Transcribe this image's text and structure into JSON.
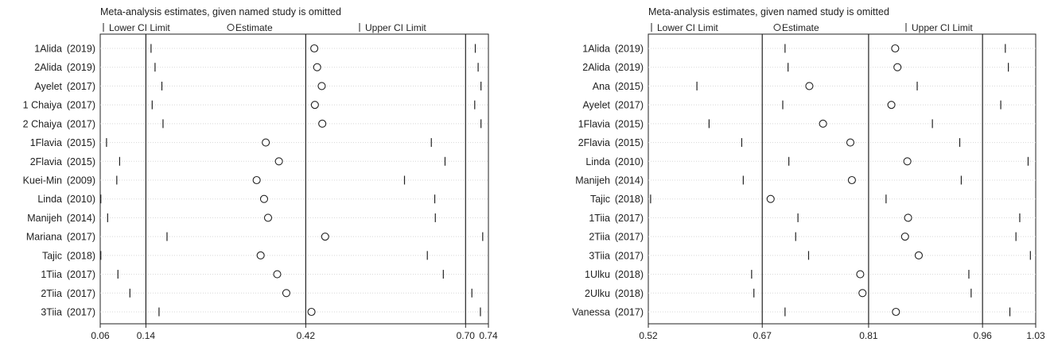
{
  "chart_data": [
    {
      "type": "scatter",
      "title": "Meta-analysis estimates, given named study is omitted",
      "legend": {
        "lower": "Lower CI Limit",
        "estimate": "Estimate",
        "upper": "Upper CI Limit"
      },
      "xlim": [
        0.06,
        0.74
      ],
      "ticks": [
        0.06,
        0.14,
        0.42,
        0.7,
        0.74
      ],
      "tick_labels": [
        "0.06",
        "0.14",
        "0.42",
        "0.70",
        "0.74"
      ],
      "reference_lines": [
        0.14,
        0.42,
        0.7
      ],
      "studies": [
        {
          "name": "1Alida",
          "year": "(2019)",
          "lower": 0.149,
          "estimate": 0.435,
          "upper": 0.717
        },
        {
          "name": "2Alida",
          "year": "(2019)",
          "lower": 0.156,
          "estimate": 0.44,
          "upper": 0.722
        },
        {
          "name": "Ayelet",
          "year": "(2017)",
          "lower": 0.168,
          "estimate": 0.448,
          "upper": 0.727
        },
        {
          "name": "1 Chaiya",
          "year": "(2017)",
          "lower": 0.151,
          "estimate": 0.436,
          "upper": 0.716
        },
        {
          "name": "2 Chaiya",
          "year": "(2017)",
          "lower": 0.17,
          "estimate": 0.449,
          "upper": 0.727
        },
        {
          "name": "1Flavia",
          "year": "(2015)",
          "lower": 0.071,
          "estimate": 0.35,
          "upper": 0.64
        },
        {
          "name": "2Flavia",
          "year": "(2015)",
          "lower": 0.094,
          "estimate": 0.373,
          "upper": 0.664
        },
        {
          "name": "Kuei-Min",
          "year": "(2009)",
          "lower": 0.089,
          "estimate": 0.334,
          "upper": 0.593
        },
        {
          "name": "Linda",
          "year": "(2010)",
          "lower": 0.061,
          "estimate": 0.347,
          "upper": 0.646
        },
        {
          "name": "Manijeh",
          "year": "(2014)",
          "lower": 0.073,
          "estimate": 0.354,
          "upper": 0.647
        },
        {
          "name": "Mariana",
          "year": "(2017)",
          "lower": 0.177,
          "estimate": 0.454,
          "upper": 0.73
        },
        {
          "name": "Tajic",
          "year": "(2018)",
          "lower": 0.061,
          "estimate": 0.341,
          "upper": 0.633
        },
        {
          "name": "1Tiia",
          "year": "(2017)",
          "lower": 0.091,
          "estimate": 0.37,
          "upper": 0.661
        },
        {
          "name": "2Tiia",
          "year": "(2017)",
          "lower": 0.112,
          "estimate": 0.386,
          "upper": 0.711
        },
        {
          "name": "3Tiia",
          "year": "(2017)",
          "lower": 0.163,
          "estimate": 0.43,
          "upper": 0.726
        }
      ]
    },
    {
      "type": "scatter",
      "title": "Meta-analysis estimates, given named study is omitted",
      "legend": {
        "lower": "Lower CI Limit",
        "estimate": "Estimate",
        "upper": "Upper CI Limit"
      },
      "xlim": [
        0.52,
        1.03
      ],
      "ticks": [
        0.52,
        0.67,
        0.81,
        0.96,
        1.03
      ],
      "tick_labels": [
        "0.52",
        "0.67",
        "0.81",
        "0.96",
        "1.03"
      ],
      "reference_lines": [
        0.67,
        0.81,
        0.96
      ],
      "studies": [
        {
          "name": "1Alida",
          "year": "(2019)",
          "lower": 0.7,
          "estimate": 0.845,
          "upper": 0.99
        },
        {
          "name": "2Alida",
          "year": "(2019)",
          "lower": 0.704,
          "estimate": 0.848,
          "upper": 0.994
        },
        {
          "name": "Ana",
          "year": "(2015)",
          "lower": 0.584,
          "estimate": 0.732,
          "upper": 0.874
        },
        {
          "name": "Ayelet",
          "year": "(2017)",
          "lower": 0.697,
          "estimate": 0.84,
          "upper": 0.984
        },
        {
          "name": "1Flavia",
          "year": "(2015)",
          "lower": 0.6,
          "estimate": 0.75,
          "upper": 0.894
        },
        {
          "name": "2Flavia",
          "year": "(2015)",
          "lower": 0.643,
          "estimate": 0.786,
          "upper": 0.93
        },
        {
          "name": "Linda",
          "year": "(2010)",
          "lower": 0.705,
          "estimate": 0.861,
          "upper": 1.02
        },
        {
          "name": "Manijeh",
          "year": "(2014)",
          "lower": 0.645,
          "estimate": 0.788,
          "upper": 0.932
        },
        {
          "name": "Tajic",
          "year": "(2018)",
          "lower": 0.523,
          "estimate": 0.681,
          "upper": 0.833
        },
        {
          "name": "1Tiia",
          "year": "(2017)",
          "lower": 0.717,
          "estimate": 0.862,
          "upper": 1.009
        },
        {
          "name": "2Tiia",
          "year": "(2017)",
          "lower": 0.714,
          "estimate": 0.858,
          "upper": 1.004
        },
        {
          "name": "3Tiia",
          "year": "(2017)",
          "lower": 0.731,
          "estimate": 0.876,
          "upper": 1.023
        },
        {
          "name": "1Ulku",
          "year": "(2018)",
          "lower": 0.656,
          "estimate": 0.799,
          "upper": 0.942
        },
        {
          "name": "2Ulku",
          "year": "(2018)",
          "lower": 0.659,
          "estimate": 0.802,
          "upper": 0.945
        },
        {
          "name": "Vanessa",
          "year": "(2017)",
          "lower": 0.7,
          "estimate": 0.846,
          "upper": 0.996
        }
      ]
    }
  ]
}
